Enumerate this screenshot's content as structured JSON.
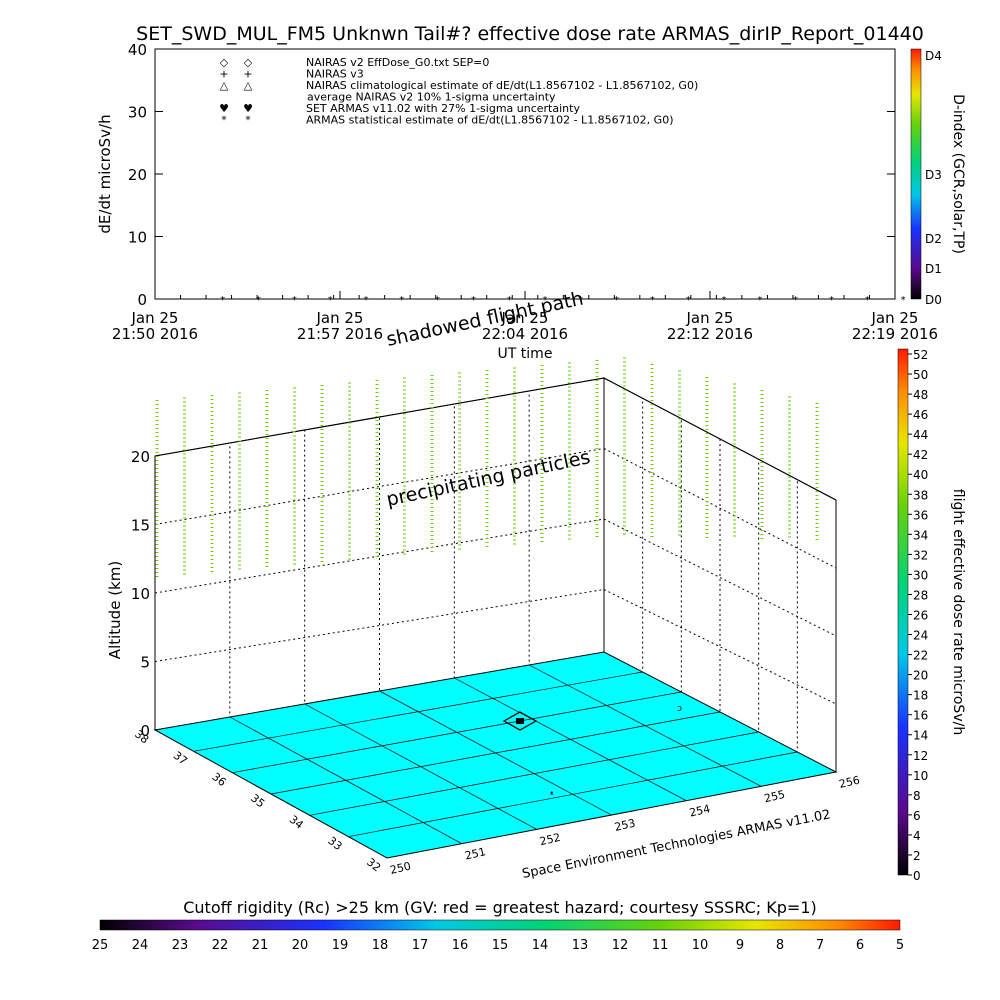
{
  "title": "SET_SWD_MUL_FM5 Unknwn Tail#? effective dose rate ARMAS_dirIP_Report_01440",
  "chart_data": [
    {
      "type": "scatter",
      "name": "dose-rate-timeseries",
      "ylabel": "dE/dt microSv/h",
      "xlabel": "UT time",
      "ylim": [
        0,
        40
      ],
      "y_ticks": [
        "0",
        "10",
        "20",
        "30",
        "40"
      ],
      "x_tick_labels": [
        [
          "Jan 25",
          "21:50 2016"
        ],
        [
          "Jan 25",
          "21:57 2016"
        ],
        [
          "Jan 25",
          "22:04 2016"
        ],
        [
          "Jan 25",
          "22:12 2016"
        ],
        [
          "Jan 25",
          "22:19 2016"
        ]
      ],
      "legend": [
        {
          "symbol": "◇",
          "label": "NAIRAS v2 EffDose_G0.txt SEP=0"
        },
        {
          "symbol": "+",
          "label": "NAIRAS v3"
        },
        {
          "symbol": "△",
          "label": "NAIRAS climatological estimate of dE/dt(L1.8567102 - L1.8567102, G0)"
        },
        {
          "symbol": "",
          "label": "average NAIRAS v2 10% 1-sigma uncertainty"
        },
        {
          "symbol": "♥",
          "label": "SET ARMAS v11.02 with 27% 1-sigma uncertainty",
          "color": "#1e3cff"
        },
        {
          "symbol": "*",
          "label": "ARMAS statistical estimate of dE/dt(L1.8567102 - L1.8567102, G0)"
        }
      ],
      "series": [
        {
          "name": "ARMAS",
          "x_minutes_from_start": [
            4,
            7,
            10,
            13,
            16,
            19,
            22,
            25,
            28,
            31,
            34,
            37,
            40,
            43,
            46,
            49,
            52,
            55,
            58,
            61
          ],
          "values": [
            0,
            0,
            0,
            0,
            0,
            0,
            0,
            0,
            0,
            0,
            0,
            0,
            0,
            0,
            0,
            0,
            0,
            0,
            0,
            0
          ]
        }
      ],
      "right_colorbar": {
        "label": "D-index (GCR,solar,TP)",
        "ticks": [
          "D0",
          "D1",
          "D2",
          "D3",
          "D4"
        ]
      }
    },
    {
      "type": "3d-surface",
      "name": "flight-path-3d",
      "zlabel": "Altitude (km)",
      "z_ticks": [
        "0",
        "5",
        "10",
        "15",
        "20"
      ],
      "lat_ticks": [
        "38",
        "37",
        "36",
        "35",
        "34",
        "33",
        "32"
      ],
      "lon_ticks": [
        "250",
        "251",
        "252",
        "253",
        "254",
        "255",
        "256"
      ],
      "annotations": [
        "shadowed flight path",
        "precipitating particles"
      ],
      "credit": "Space Environment Technologies ARMAS v11.02",
      "dose_colorbar": {
        "label": "flight effective dose rate microSv/h",
        "ticks": [
          "0",
          "2",
          "4",
          "6",
          "8",
          "10",
          "12",
          "14",
          "16",
          "18",
          "20",
          "22",
          "24",
          "26",
          "28",
          "30",
          "32",
          "34",
          "36",
          "38",
          "40",
          "42",
          "44",
          "46",
          "48",
          "50",
          "52"
        ]
      }
    }
  ],
  "bottom_colorbar": {
    "label": "Cutoff rigidity (Rc) >25 km (GV: red = greatest hazard; courtesy SSSRC; Kp=1)",
    "ticks": [
      "25",
      "24",
      "23",
      "22",
      "21",
      "20",
      "19",
      "18",
      "17",
      "16",
      "15",
      "14",
      "13",
      "12",
      "11",
      "10",
      "9",
      "8",
      "7",
      "6",
      "5"
    ]
  }
}
